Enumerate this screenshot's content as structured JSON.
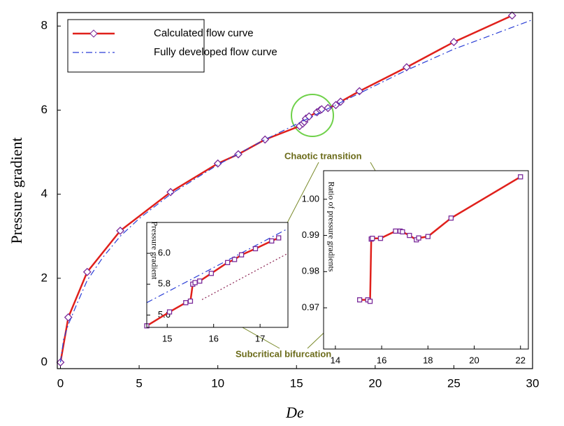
{
  "chart_data": [
    {
      "type": "line",
      "xlabel": "De",
      "ylabel": "Pressure gradient",
      "xlim": [
        -0.2,
        30
      ],
      "ylim": [
        -0.15,
        8.32
      ],
      "xticks": [
        0,
        5,
        10,
        15,
        20,
        25,
        30
      ],
      "yticks": [
        0,
        2,
        4,
        6,
        8
      ],
      "legend": "upper left",
      "annotations": [
        "Chaotic transition",
        "Subcritical bifurcation"
      ],
      "series": [
        {
          "name": "Calculated flow curve",
          "color": "#e0201b",
          "marker": "diamond",
          "x": [
            0,
            0.5,
            1.7,
            3.8,
            7,
            10,
            11.3,
            13,
            15.2,
            15.4,
            15.5,
            15.6,
            15.8,
            16.3,
            16.5,
            16.6,
            17,
            17.5,
            17.8,
            19,
            22,
            25,
            28.7
          ],
          "values": [
            0,
            1.07,
            2.15,
            3.13,
            4.05,
            4.73,
            4.95,
            5.3,
            5.62,
            5.68,
            5.72,
            5.8,
            5.85,
            5.95,
            6.0,
            6.02,
            6.05,
            6.12,
            6.2,
            6.45,
            7.02,
            7.62,
            8.25
          ]
        },
        {
          "name": "Fully developed flow curve",
          "color": "#2b3fd6",
          "dash": "dashdot",
          "x": [
            0,
            0.2,
            0.5,
            1,
            1.7,
            2.7,
            3.8,
            5,
            7,
            10,
            13,
            16,
            19,
            22,
            25,
            30
          ],
          "values": [
            0,
            0.55,
            0.9,
            1.35,
            1.95,
            2.5,
            3.0,
            3.42,
            4.0,
            4.7,
            5.3,
            5.85,
            6.4,
            6.95,
            7.45,
            8.15
          ]
        }
      ]
    },
    {
      "type": "line",
      "ylabel": "Pressure gradient",
      "xlim": [
        14.56,
        17.6
      ],
      "ylim": [
        5.52,
        6.2
      ],
      "xticks": [
        15,
        16,
        17
      ],
      "yticks": [
        5.6,
        5.8,
        {
          "value": 6,
          "label": "6.0"
        }
      ],
      "series": [
        {
          "color": "#2b3fd6",
          "dash": "dashdot",
          "x": [
            14.56,
            17.6
          ],
          "values": [
            5.68,
            6.16
          ]
        },
        {
          "color": "#8b2252",
          "dash": "dotted",
          "x": [
            15.75,
            17.6
          ],
          "values": [
            5.7,
            6.0
          ]
        },
        {
          "color": "#e0201b",
          "marker": "square",
          "x": [
            14.56,
            15.05,
            15.4,
            15.5,
            15.55,
            15.6,
            15.7,
            15.95,
            16.3,
            16.45,
            16.6,
            16.9,
            17.25,
            17.4
          ],
          "values": [
            5.53,
            5.62,
            5.68,
            5.69,
            5.8,
            5.81,
            5.82,
            5.87,
            5.94,
            5.96,
            5.99,
            6.03,
            6.08,
            6.1
          ]
        }
      ]
    },
    {
      "type": "line",
      "ylabel": "Ratio of pressure gradients",
      "xlim": [
        13.49,
        22.34
      ],
      "ylim": [
        0.9586,
        1.0079
      ],
      "xticks": [
        14,
        16,
        18,
        20,
        22
      ],
      "yticks": [
        0.97,
        0.98,
        0.99,
        {
          "value": 1,
          "label": "1.00"
        }
      ],
      "series": [
        {
          "color": "#e0201b",
          "marker": "square",
          "x": [
            15.05,
            15.4,
            15.5,
            15.55,
            15.6,
            15.95,
            16.6,
            16.8,
            16.9,
            17.2,
            17.5,
            17.6,
            18,
            19,
            22
          ],
          "values": [
            0.9722,
            0.9722,
            0.9718,
            0.989,
            0.9892,
            0.9892,
            0.9912,
            0.9912,
            0.991,
            0.99,
            0.9888,
            0.9893,
            0.9897,
            0.9948,
            1.0062
          ]
        }
      ]
    }
  ]
}
